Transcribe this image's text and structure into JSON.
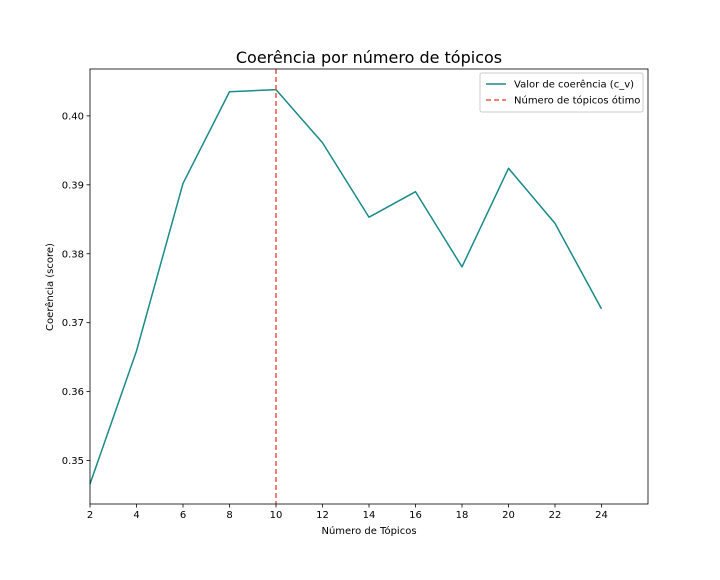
{
  "chart_data": {
    "type": "line",
    "title": "Coerência por número de tópicos",
    "xlabel": "Número de Tópicos",
    "ylabel": "Coerência (score)",
    "xlim": [
      2,
      26
    ],
    "ylim": [
      0.3437,
      0.4068
    ],
    "xticks": [
      2,
      4,
      6,
      8,
      10,
      12,
      14,
      16,
      18,
      20,
      22,
      24
    ],
    "yticks": [
      0.35,
      0.36,
      0.37,
      0.38,
      0.39,
      0.4
    ],
    "ytick_labels": [
      "0.35",
      "0.36",
      "0.37",
      "0.38",
      "0.39",
      "0.40"
    ],
    "grid": false,
    "legend_position": "top-right",
    "series": [
      {
        "name": "Valor de coerência (c_v)",
        "color": "#1a8a8a",
        "style": "solid",
        "x": [
          2,
          4,
          6,
          8,
          10,
          12,
          14,
          16,
          18,
          20,
          22,
          24
        ],
        "y": [
          0.3466,
          0.3659,
          0.3902,
          0.4035,
          0.4038,
          0.3961,
          0.3853,
          0.389,
          0.3781,
          0.3924,
          0.3844,
          0.372
        ]
      }
    ],
    "vlines": [
      {
        "name": "Número de tópicos ótimo",
        "x": 10,
        "color": "#e8554e",
        "style": "dashed"
      }
    ]
  }
}
